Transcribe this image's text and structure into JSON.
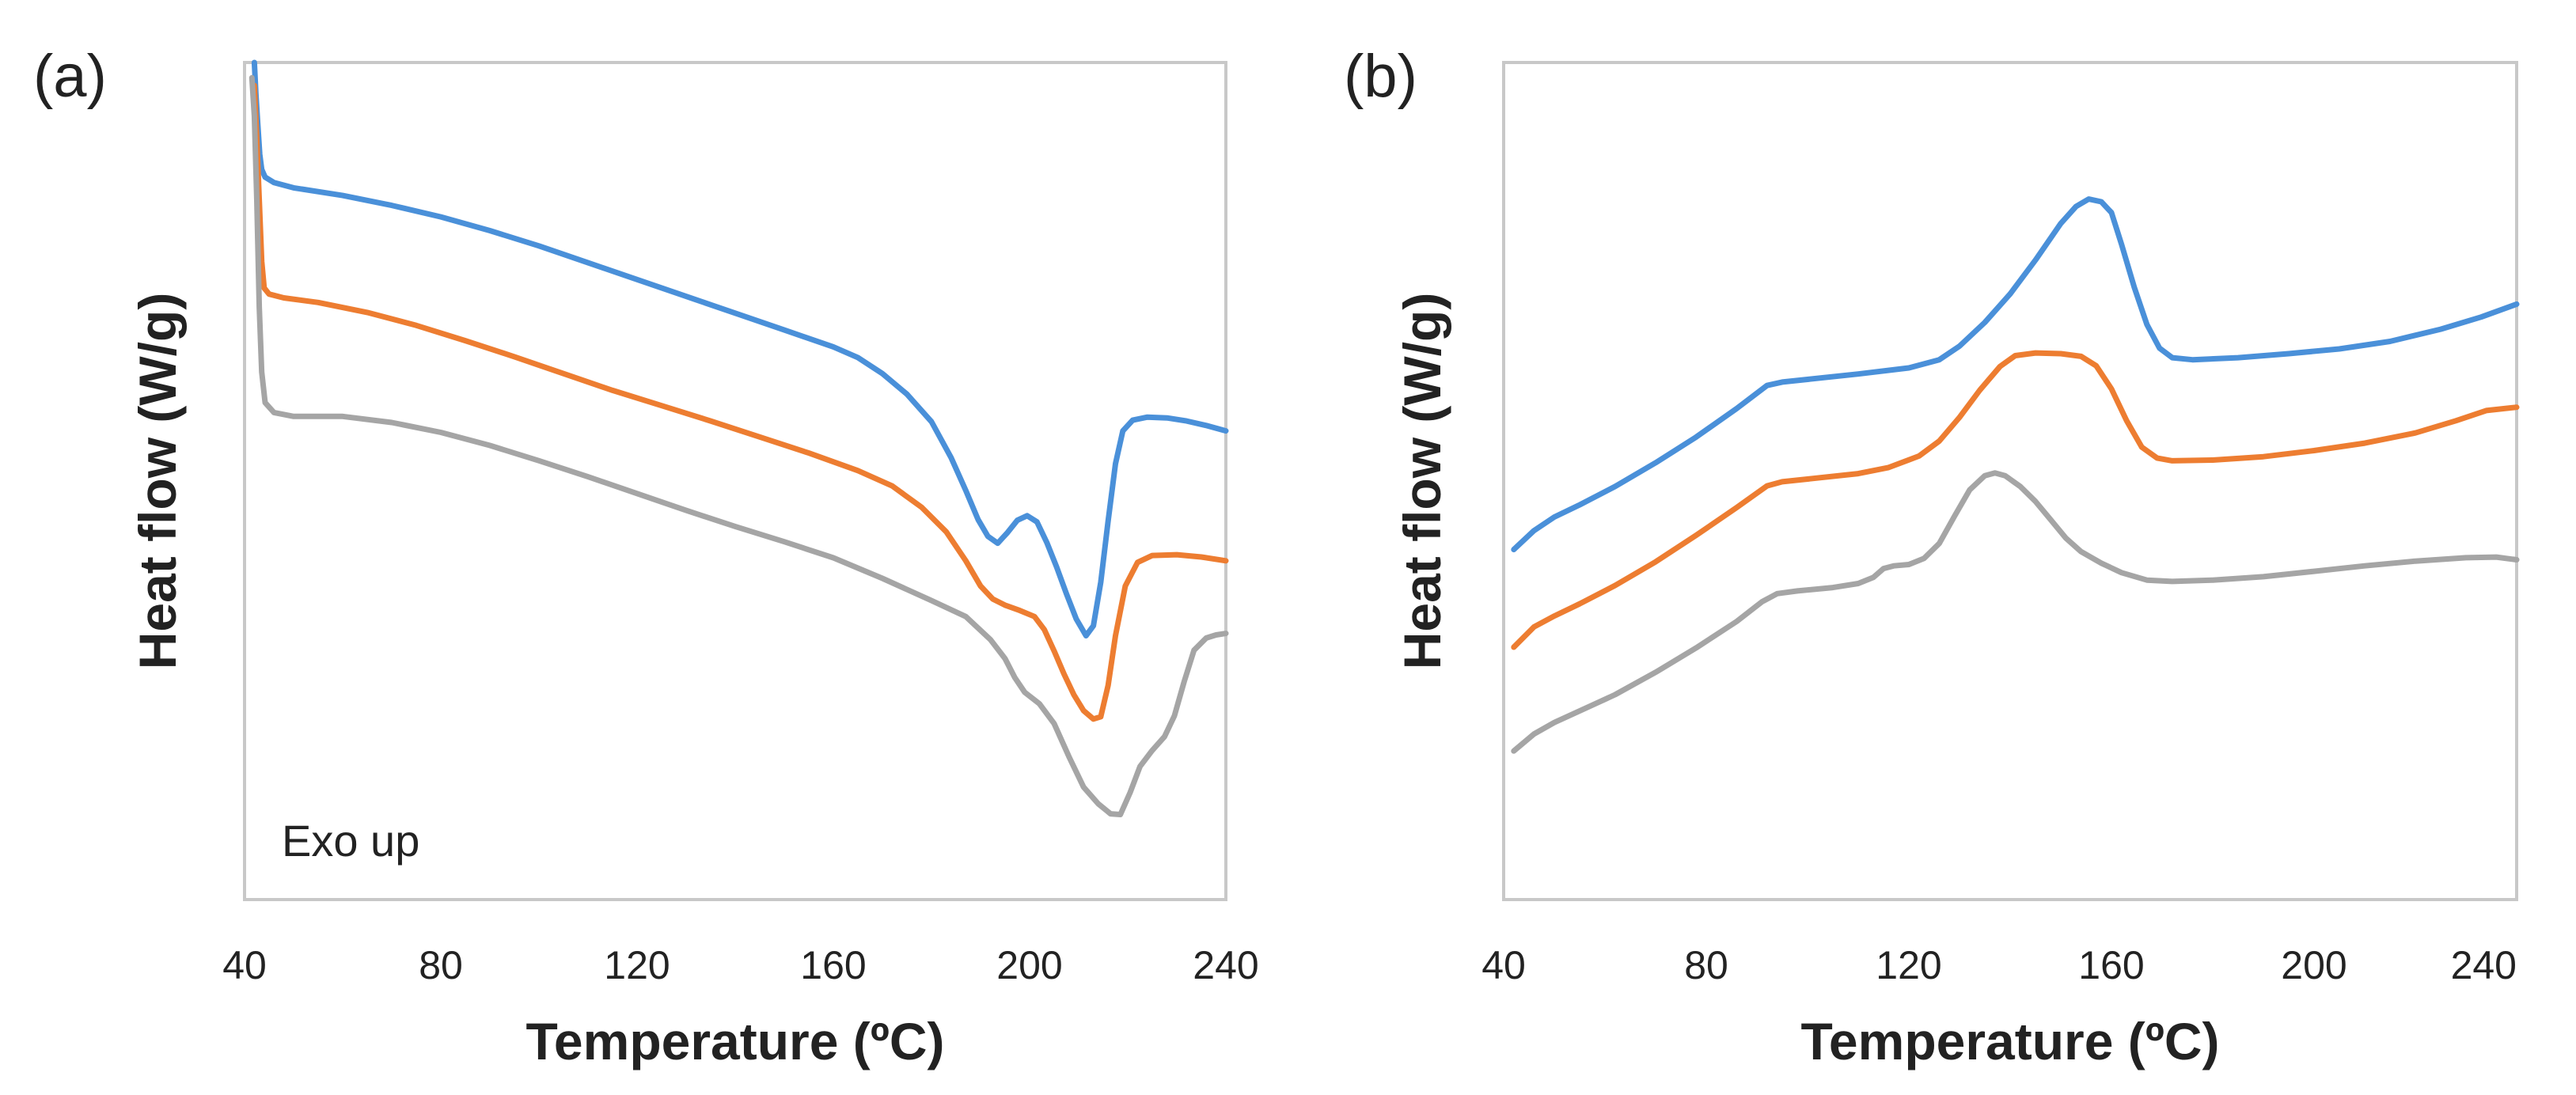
{
  "chart_data": [
    {
      "type": "line",
      "panel_label": "(a)",
      "title": "",
      "xlabel": "Temperature (ºC)",
      "ylabel": "Heat flow (W/g)",
      "xlim": [
        40,
        240
      ],
      "ylim": [
        0,
        100
      ],
      "x_ticks": [
        "40",
        "80",
        "120",
        "160",
        "200",
        "240"
      ],
      "grid": false,
      "annotation": "Exo up",
      "series": [
        {
          "name": "blue",
          "color": "#4a90d9",
          "points": [
            [
              42.0,
              100
            ],
            [
              42.3,
              96
            ],
            [
              42.7,
              92
            ],
            [
              43.1,
              88
            ],
            [
              43.5,
              86
            ],
            [
              44.2,
              85
            ],
            [
              46,
              84.3
            ],
            [
              50,
              83.6
            ],
            [
              60,
              82.6
            ],
            [
              70,
              81.3
            ],
            [
              80,
              79.8
            ],
            [
              90,
              78.0
            ],
            [
              100,
              76.0
            ],
            [
              110,
              73.8
            ],
            [
              120,
              71.6
            ],
            [
              130,
              69.4
            ],
            [
              140,
              67.2
            ],
            [
              150,
              65.0
            ],
            [
              160,
              62.8
            ],
            [
              165,
              61.4
            ],
            [
              170,
              59.3
            ],
            [
              175,
              56.6
            ],
            [
              180,
              53.0
            ],
            [
              184,
              48.3
            ],
            [
              187,
              44.0
            ],
            [
              189.5,
              40.2
            ],
            [
              191.5,
              38.0
            ],
            [
              193.5,
              37.1
            ],
            [
              195.5,
              38.5
            ],
            [
              197.5,
              40.1
            ],
            [
              199.5,
              40.7
            ],
            [
              201.5,
              39.9
            ],
            [
              203.5,
              37.2
            ],
            [
              205.5,
              34.0
            ],
            [
              207.5,
              30.5
            ],
            [
              209.5,
              27.2
            ],
            [
              211.5,
              25.0
            ],
            [
              213,
              26.3
            ],
            [
              214.5,
              32.0
            ],
            [
              216,
              40.0
            ],
            [
              217.5,
              47.5
            ],
            [
              219,
              51.8
            ],
            [
              221,
              53.2
            ],
            [
              224,
              53.6
            ],
            [
              228,
              53.5
            ],
            [
              232,
              53.1
            ],
            [
              236,
              52.5
            ],
            [
              240,
              51.8
            ]
          ]
        },
        {
          "name": "orange",
          "color": "#ed7d31",
          "points": [
            [
              42.0,
              97
            ],
            [
              42.5,
              90
            ],
            [
              43.0,
              82
            ],
            [
              43.5,
              74
            ],
            [
              44.0,
              70.5
            ],
            [
              45,
              69.7
            ],
            [
              48,
              69.2
            ],
            [
              55,
              68.6
            ],
            [
              65,
              67.3
            ],
            [
              75,
              65.6
            ],
            [
              85,
              63.6
            ],
            [
              95,
              61.5
            ],
            [
              105,
              59.3
            ],
            [
              115,
              57.1
            ],
            [
              125,
              55.1
            ],
            [
              135,
              53.1
            ],
            [
              145,
              51.0
            ],
            [
              155,
              48.9
            ],
            [
              165,
              46.6
            ],
            [
              172,
              44.6
            ],
            [
              178,
              41.8
            ],
            [
              183,
              38.6
            ],
            [
              187,
              34.8
            ],
            [
              190,
              31.5
            ],
            [
              192.5,
              29.8
            ],
            [
              195,
              29.0
            ],
            [
              198,
              28.3
            ],
            [
              201,
              27.5
            ],
            [
              203,
              25.8
            ],
            [
              205,
              23.0
            ],
            [
              207,
              20.0
            ],
            [
              209,
              17.3
            ],
            [
              211,
              15.2
            ],
            [
              213,
              14.1
            ],
            [
              214.5,
              14.4
            ],
            [
              216,
              18.5
            ],
            [
              217.5,
              25.0
            ],
            [
              219.5,
              31.5
            ],
            [
              222,
              34.6
            ],
            [
              225,
              35.5
            ],
            [
              230,
              35.6
            ],
            [
              235,
              35.3
            ],
            [
              240,
              34.8
            ]
          ]
        },
        {
          "name": "gray",
          "color": "#a5a5a5",
          "points": [
            [
              41.5,
              98
            ],
            [
              42.0,
              93
            ],
            [
              42.5,
              82
            ],
            [
              43.0,
              68
            ],
            [
              43.5,
              59.5
            ],
            [
              44.2,
              55.5
            ],
            [
              46,
              54.2
            ],
            [
              50,
              53.7
            ],
            [
              60,
              53.7
            ],
            [
              70,
              52.9
            ],
            [
              80,
              51.6
            ],
            [
              90,
              49.9
            ],
            [
              100,
              47.9
            ],
            [
              110,
              45.8
            ],
            [
              120,
              43.6
            ],
            [
              130,
              41.4
            ],
            [
              140,
              39.3
            ],
            [
              150,
              37.3
            ],
            [
              160,
              35.2
            ],
            [
              170,
              32.5
            ],
            [
              180,
              29.6
            ],
            [
              187,
              27.5
            ],
            [
              192,
              24.5
            ],
            [
              195,
              22.0
            ],
            [
              197,
              19.5
            ],
            [
              199,
              17.6
            ],
            [
              202,
              16.1
            ],
            [
              205,
              13.5
            ],
            [
              208,
              9.2
            ],
            [
              211,
              5.2
            ],
            [
              214,
              3.0
            ],
            [
              216.5,
              1.7
            ],
            [
              218.5,
              1.6
            ],
            [
              220.5,
              4.5
            ],
            [
              222.5,
              7.9
            ],
            [
              225,
              10.0
            ],
            [
              227.5,
              11.8
            ],
            [
              229.5,
              14.5
            ],
            [
              231.5,
              19.0
            ],
            [
              233.5,
              23.1
            ],
            [
              236,
              24.7
            ],
            [
              238,
              25.1
            ],
            [
              240,
              25.3
            ]
          ]
        }
      ]
    },
    {
      "type": "line",
      "panel_label": "(b)",
      "title": "",
      "xlabel": "Temperature (ºC)",
      "ylabel": "Heat flow (W/g)",
      "xlim": [
        40,
        240
      ],
      "ylim": [
        0,
        100
      ],
      "x_ticks": [
        "40",
        "80",
        "120",
        "160",
        "200",
        "240"
      ],
      "grid": false,
      "series": [
        {
          "name": "blue",
          "color": "#4a90d9",
          "points": [
            [
              42,
              40.3
            ],
            [
              46,
              43.1
            ],
            [
              50,
              45.1
            ],
            [
              55,
              46.9
            ],
            [
              62,
              49.6
            ],
            [
              70,
              53.1
            ],
            [
              78,
              56.9
            ],
            [
              86,
              61.1
            ],
            [
              92,
              64.5
            ],
            [
              95,
              65.0
            ],
            [
              100,
              65.4
            ],
            [
              110,
              66.2
            ],
            [
              120,
              67.1
            ],
            [
              126,
              68.3
            ],
            [
              130,
              70.3
            ],
            [
              135,
              73.8
            ],
            [
              140,
              78.0
            ],
            [
              145,
              83.0
            ],
            [
              150,
              88.4
            ],
            [
              153,
              90.9
            ],
            [
              155.5,
              92.0
            ],
            [
              158,
              91.6
            ],
            [
              160,
              90.0
            ],
            [
              162,
              85.3
            ],
            [
              164.5,
              79.0
            ],
            [
              167,
              73.5
            ],
            [
              169.5,
              70.0
            ],
            [
              172,
              68.6
            ],
            [
              176,
              68.3
            ],
            [
              185,
              68.6
            ],
            [
              195,
              69.2
            ],
            [
              205,
              69.9
            ],
            [
              215,
              71.0
            ],
            [
              225,
              72.8
            ],
            [
              233,
              74.6
            ],
            [
              240,
              76.5
            ]
          ]
        },
        {
          "name": "orange",
          "color": "#ed7d31",
          "points": [
            [
              42,
              25.9
            ],
            [
              46,
              28.9
            ],
            [
              50,
              30.5
            ],
            [
              55,
              32.3
            ],
            [
              62,
              35.0
            ],
            [
              70,
              38.5
            ],
            [
              78,
              42.4
            ],
            [
              86,
              46.5
            ],
            [
              92,
              49.7
            ],
            [
              95,
              50.3
            ],
            [
              100,
              50.7
            ],
            [
              110,
              51.5
            ],
            [
              116,
              52.4
            ],
            [
              122,
              54.1
            ],
            [
              126,
              56.3
            ],
            [
              130,
              59.8
            ],
            [
              134,
              63.8
            ],
            [
              138,
              67.3
            ],
            [
              141,
              68.9
            ],
            [
              145,
              69.3
            ],
            [
              150,
              69.2
            ],
            [
              154,
              68.8
            ],
            [
              157,
              67.4
            ],
            [
              160,
              64.0
            ],
            [
              163,
              59.3
            ],
            [
              166,
              55.4
            ],
            [
              169,
              53.8
            ],
            [
              172,
              53.4
            ],
            [
              180,
              53.5
            ],
            [
              190,
              54.0
            ],
            [
              200,
              54.9
            ],
            [
              210,
              56.0
            ],
            [
              220,
              57.5
            ],
            [
              228,
              59.3
            ],
            [
              234,
              60.8
            ],
            [
              240,
              61.3
            ]
          ]
        },
        {
          "name": "gray",
          "color": "#a5a5a5",
          "points": [
            [
              42,
              10.6
            ],
            [
              46,
              13.1
            ],
            [
              50,
              14.8
            ],
            [
              55,
              16.5
            ],
            [
              62,
              18.9
            ],
            [
              70,
              22.2
            ],
            [
              78,
              25.8
            ],
            [
              86,
              29.7
            ],
            [
              91,
              32.6
            ],
            [
              94,
              33.8
            ],
            [
              98,
              34.2
            ],
            [
              105,
              34.7
            ],
            [
              110,
              35.3
            ],
            [
              113,
              36.2
            ],
            [
              115,
              37.5
            ],
            [
              117,
              37.9
            ],
            [
              120,
              38.1
            ],
            [
              123,
              39.0
            ],
            [
              126,
              41.2
            ],
            [
              129,
              45.2
            ],
            [
              132,
              49.1
            ],
            [
              135,
              51.2
            ],
            [
              137,
              51.6
            ],
            [
              139,
              51.2
            ],
            [
              142,
              49.6
            ],
            [
              145,
              47.4
            ],
            [
              148,
              44.7
            ],
            [
              151,
              42.0
            ],
            [
              154,
              40.0
            ],
            [
              158,
              38.3
            ],
            [
              162,
              36.9
            ],
            [
              167,
              35.8
            ],
            [
              172,
              35.6
            ],
            [
              180,
              35.8
            ],
            [
              190,
              36.3
            ],
            [
              200,
              37.1
            ],
            [
              210,
              37.9
            ],
            [
              220,
              38.6
            ],
            [
              230,
              39.1
            ],
            [
              236,
              39.2
            ],
            [
              240,
              38.8
            ]
          ]
        }
      ]
    }
  ]
}
